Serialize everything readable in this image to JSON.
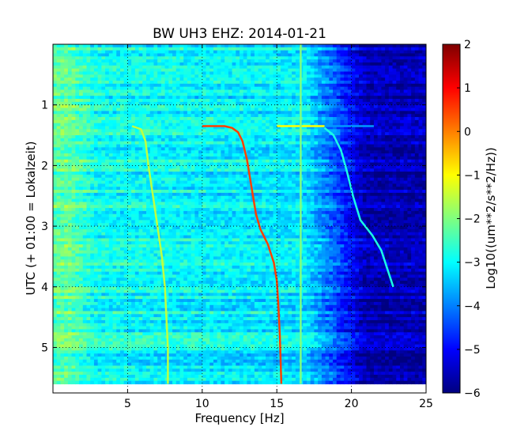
{
  "chart_data": {
    "type": "heatmap",
    "title": "BW UH3 EHZ: 2014-01-21",
    "xlabel": "Frequency [Hz]",
    "ylabel": "UTC (+ 01:00 = Lokalzeit)",
    "xlim": [
      0,
      25
    ],
    "ylim": [
      5.75,
      0
    ],
    "data_extent_y": [
      0,
      5.6
    ],
    "x_ticks": [
      5,
      10,
      15,
      20,
      25
    ],
    "y_ticks": [
      1,
      2,
      3,
      4,
      5
    ],
    "grid": true,
    "colormap": "jet",
    "colorbar": {
      "label": "Log10((um**2/s**2/Hz))",
      "range": [
        -6,
        2
      ],
      "ticks": [
        -6,
        -5,
        -4,
        -3,
        -2,
        -1,
        0,
        1,
        2
      ]
    },
    "series": [
      {
        "level": -1.5,
        "points": [
          [
            5.3,
            1.35
          ],
          [
            5.9,
            1.4
          ],
          [
            6.2,
            1.6
          ],
          [
            6.4,
            2.0
          ],
          [
            6.7,
            2.5
          ],
          [
            7.0,
            3.0
          ],
          [
            7.3,
            3.5
          ],
          [
            7.5,
            4.0
          ],
          [
            7.6,
            4.5
          ],
          [
            7.7,
            5.0
          ],
          [
            7.7,
            5.6
          ]
        ]
      },
      {
        "level": 0.5,
        "points": [
          [
            10.0,
            1.35
          ],
          [
            11.5,
            1.35
          ],
          [
            12.0,
            1.38
          ],
          [
            12.4,
            1.45
          ],
          [
            12.7,
            1.6
          ],
          [
            13.0,
            1.9
          ],
          [
            13.2,
            2.2
          ],
          [
            13.4,
            2.5
          ],
          [
            13.6,
            2.8
          ],
          [
            13.9,
            3.05
          ],
          [
            14.4,
            3.3
          ],
          [
            14.8,
            3.6
          ],
          [
            15.0,
            3.9
          ],
          [
            15.1,
            4.3
          ],
          [
            15.2,
            4.8
          ],
          [
            15.3,
            5.6
          ]
        ]
      },
      {
        "level": -1.0,
        "points": [
          [
            15.0,
            1.35
          ],
          [
            18.2,
            1.35
          ]
        ]
      },
      {
        "level": -2.8,
        "points": [
          [
            18.2,
            1.38
          ],
          [
            18.8,
            1.5
          ],
          [
            19.3,
            1.75
          ],
          [
            19.7,
            2.1
          ],
          [
            20.1,
            2.5
          ],
          [
            20.6,
            2.9
          ],
          [
            21.4,
            3.15
          ],
          [
            22.0,
            3.4
          ],
          [
            22.4,
            3.7
          ],
          [
            22.8,
            4.0
          ]
        ]
      },
      {
        "level": -3.8,
        "points": [
          [
            18.2,
            1.35
          ],
          [
            21.5,
            1.35
          ]
        ]
      },
      {
        "level": -2.0,
        "points": [
          [
            16.6,
            0
          ],
          [
            16.6,
            5.6
          ]
        ]
      }
    ]
  }
}
